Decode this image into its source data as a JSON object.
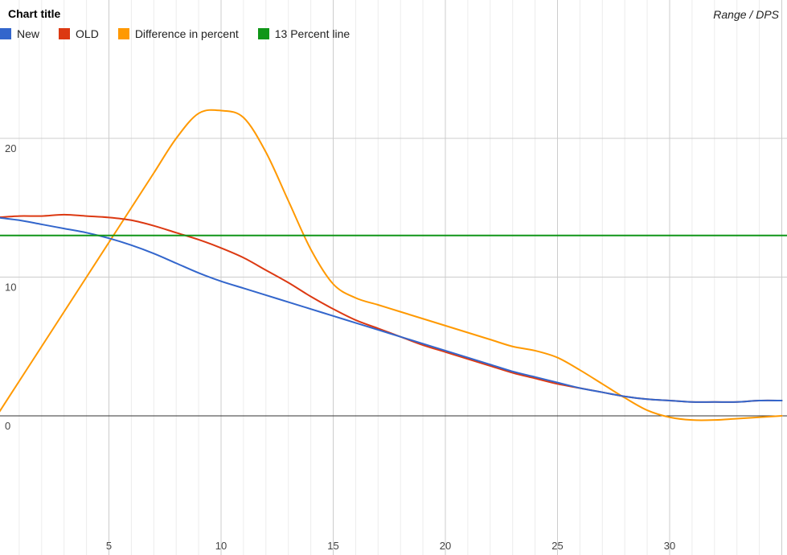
{
  "chart_data": {
    "type": "line",
    "title": "Chart title",
    "corner_label": "Range / DPS",
    "xlim": [
      0,
      35
    ],
    "ylim": [
      -10,
      30
    ],
    "x_ticks": [
      5,
      10,
      15,
      20,
      25,
      30
    ],
    "y_ticks": [
      0,
      10,
      20
    ],
    "grid": true,
    "legend_position": "top-left",
    "x": [
      0,
      1,
      2,
      3,
      4,
      5,
      6,
      7,
      8,
      9,
      10,
      11,
      12,
      13,
      14,
      15,
      16,
      17,
      18,
      19,
      20,
      21,
      22,
      23,
      24,
      25,
      26,
      27,
      28,
      29,
      30,
      31,
      32,
      33,
      34,
      35
    ],
    "series": [
      {
        "name": "New",
        "color": "#3366cc",
        "values": [
          14.3,
          14.1,
          13.8,
          13.5,
          13.2,
          12.8,
          12.3,
          11.7,
          11.0,
          10.3,
          9.7,
          9.2,
          8.7,
          8.2,
          7.7,
          7.2,
          6.7,
          6.2,
          5.7,
          5.2,
          4.7,
          4.2,
          3.7,
          3.2,
          2.8,
          2.4,
          2.0,
          1.7,
          1.4,
          1.2,
          1.1,
          1.0,
          1.0,
          1.0,
          1.1,
          1.1
        ]
      },
      {
        "name": "OLD",
        "color": "#dc3912",
        "values": [
          14.3,
          14.4,
          14.4,
          14.5,
          14.4,
          14.3,
          14.1,
          13.7,
          13.2,
          12.7,
          12.1,
          11.4,
          10.5,
          9.6,
          8.6,
          7.7,
          6.9,
          6.3,
          5.7,
          5.1,
          4.6,
          4.1,
          3.6,
          3.1,
          2.7,
          2.3,
          2.0,
          1.7,
          1.4,
          1.2,
          1.1,
          1.0,
          1.0,
          1.0,
          1.1,
          1.1
        ]
      },
      {
        "name": "Difference in percent",
        "color": "#ff9900",
        "values": [
          0.0,
          2.5,
          5.0,
          7.5,
          10.0,
          12.5,
          15.0,
          17.5,
          20.0,
          21.8,
          22.0,
          21.5,
          19.0,
          15.5,
          12.0,
          9.5,
          8.5,
          8.0,
          7.5,
          7.0,
          6.5,
          6.0,
          5.5,
          5.0,
          4.7,
          4.2,
          3.3,
          2.3,
          1.3,
          0.4,
          -0.1,
          -0.3,
          -0.3,
          -0.2,
          -0.1,
          0.0
        ]
      },
      {
        "name": "13 Percent line",
        "color": "#109618",
        "values": [
          13,
          13,
          13,
          13,
          13,
          13,
          13,
          13,
          13,
          13,
          13,
          13,
          13,
          13,
          13,
          13,
          13,
          13,
          13,
          13,
          13,
          13,
          13,
          13,
          13,
          13,
          13,
          13,
          13,
          13,
          13,
          13,
          13,
          13,
          13,
          13
        ]
      }
    ]
  }
}
